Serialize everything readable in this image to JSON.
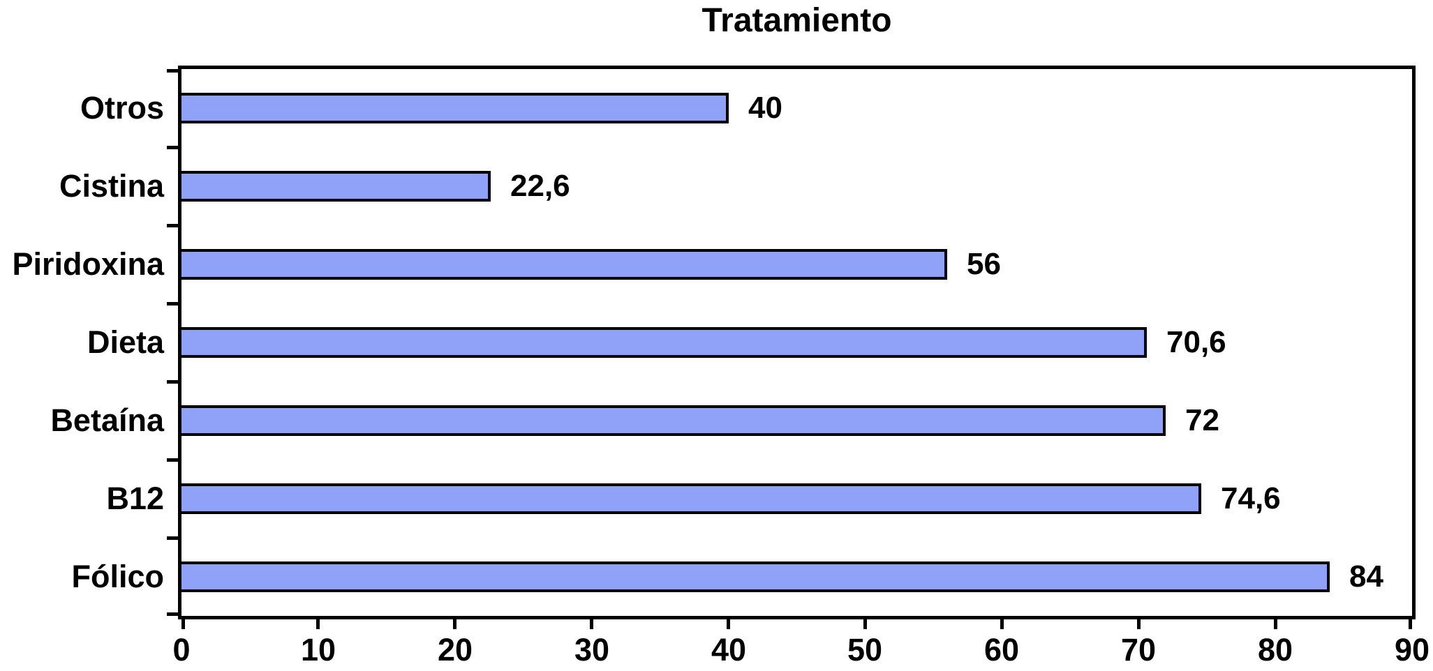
{
  "chart_data": {
    "type": "bar",
    "orientation": "horizontal",
    "title": "Tratamiento",
    "categories": [
      "Otros",
      "Cistina",
      "Piridoxina",
      "Dieta",
      "Betaína",
      "B12",
      "Fólico"
    ],
    "values": [
      40,
      22.6,
      56,
      70.6,
      72,
      74.6,
      84
    ],
    "value_labels": [
      "40",
      "22,6",
      "56",
      "70,6",
      "72",
      "74,6",
      "84"
    ],
    "xlabel": "",
    "ylabel": "",
    "xlim": [
      0,
      90
    ],
    "x_ticks": [
      0,
      10,
      20,
      30,
      40,
      50,
      60,
      70,
      80,
      90
    ],
    "x_tick_labels": [
      "0",
      "10",
      "20",
      "30",
      "40",
      "50",
      "60",
      "70",
      "80",
      "90"
    ],
    "grid": false,
    "legend_position": "none",
    "decimal_separator": ",",
    "colors": {
      "bar_fill": "#8FA2F8",
      "bar_border": "#000000",
      "axis": "#000000",
      "text": "#000000",
      "background": "#FFFFFF"
    }
  }
}
